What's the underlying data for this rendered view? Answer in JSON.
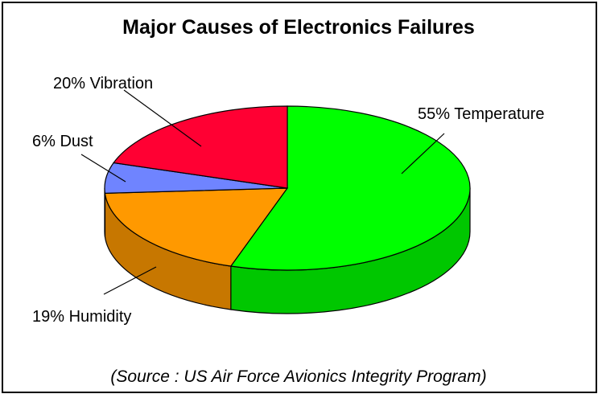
{
  "chart_data": {
    "type": "pie",
    "title": "Major Causes of Electronics Failures",
    "note": "(Source : US Air Force Avionics Integrity Program)",
    "slices": [
      {
        "label": "55% Temperature",
        "category": "Temperature",
        "value": 55,
        "color": "#00ff00"
      },
      {
        "label": "19% Humidity",
        "category": "Humidity",
        "value": 19,
        "color": "#ff9900"
      },
      {
        "label": "6% Dust",
        "category": "Dust",
        "value": 6,
        "color": "#6f84ff"
      },
      {
        "label": "20% Vibration",
        "category": "Vibration",
        "value": 20,
        "color": "#ff0033"
      }
    ],
    "style": "3d-pie",
    "legend": "none"
  }
}
